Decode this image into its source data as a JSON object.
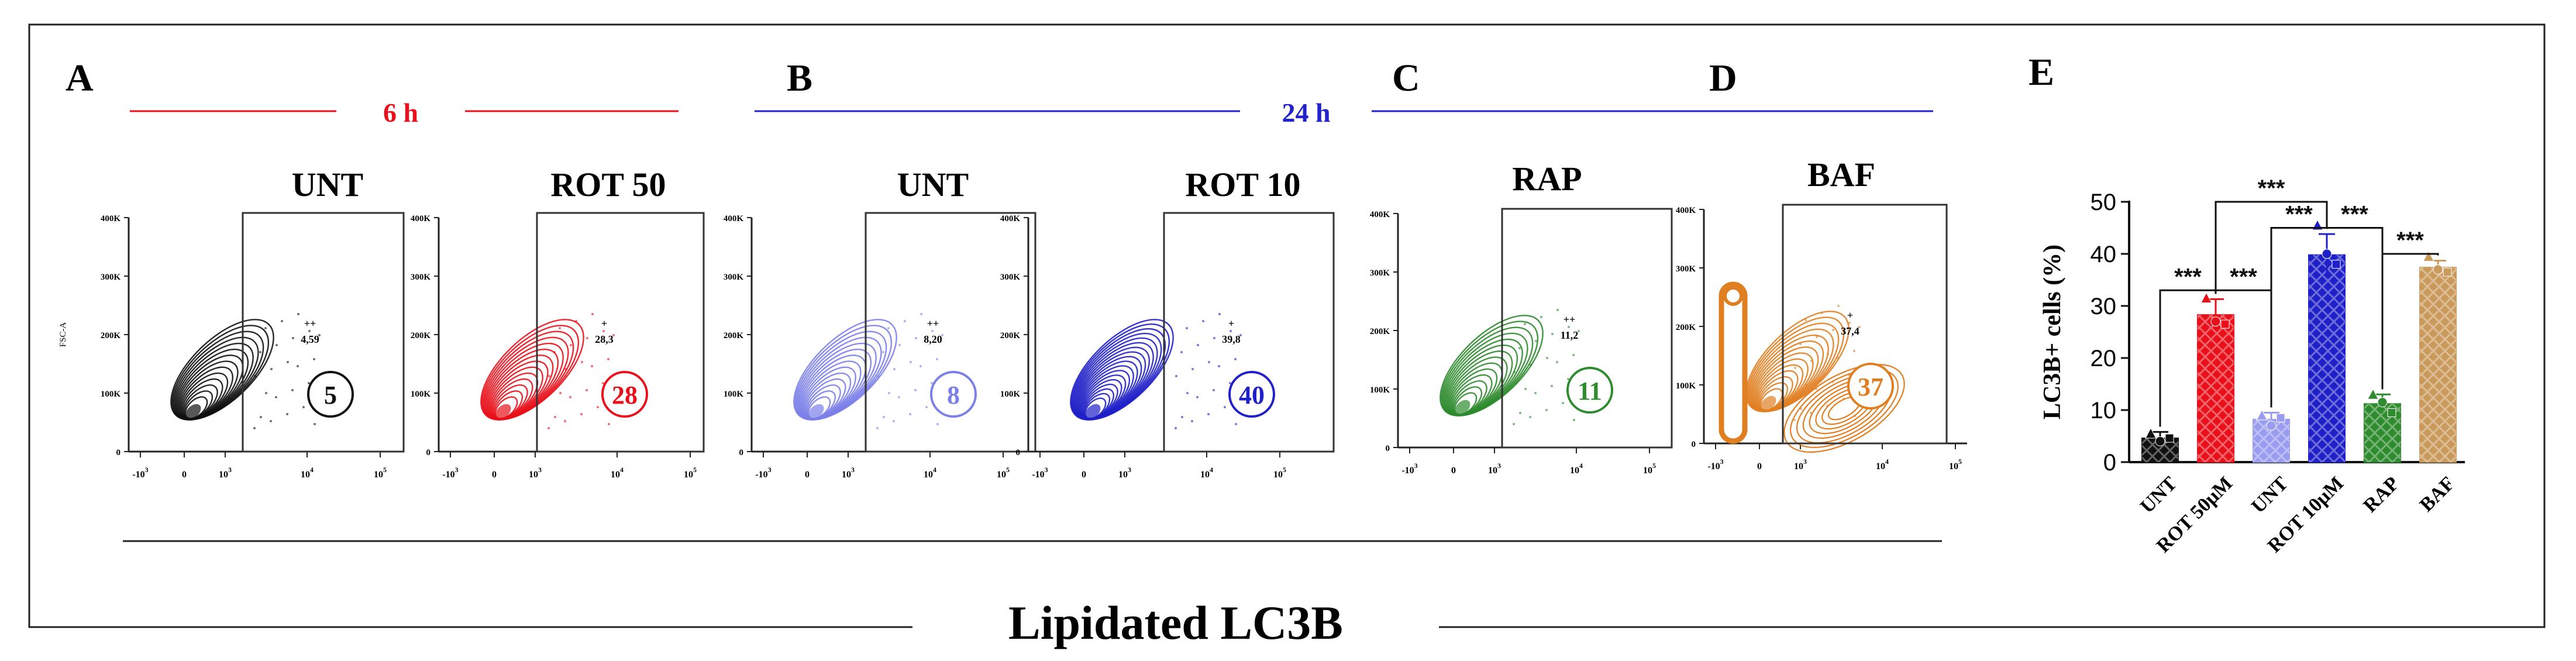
{
  "figure": {
    "x_axis_title": "Lipidated LC3B",
    "time_labels": {
      "early": "6 h",
      "late": "24 h"
    },
    "colors": {
      "early": "#e8111b",
      "late": "#2222cc"
    }
  },
  "panels": [
    {
      "letter": "A",
      "label": "UNT",
      "color": "#111111",
      "gate_value": "4,59",
      "gate_marks": "++",
      "circle_value": "5",
      "ylabel": "FSC-A"
    },
    {
      "letter": "",
      "label": "ROT 50",
      "color": "#e8111b",
      "gate_value": "28,3",
      "gate_marks": "+",
      "circle_value": "28",
      "ylabel": ""
    },
    {
      "letter": "B",
      "label": "UNT",
      "color": "#7b7fe8",
      "gate_value": "8,20",
      "gate_marks": "++",
      "circle_value": "8",
      "ylabel": ""
    },
    {
      "letter": "",
      "label": "ROT 10",
      "color": "#2020c8",
      "gate_value": "39,8",
      "gate_marks": "+",
      "circle_value": "40",
      "ylabel": ""
    },
    {
      "letter": "C",
      "label": "RAP",
      "color": "#2e8b2e",
      "gate_value": "11,2",
      "gate_marks": "++",
      "circle_value": "11",
      "ylabel": ""
    },
    {
      "letter": "D",
      "label": "BAF",
      "color": "#e07f22",
      "gate_value": "37,4",
      "gate_marks": "+",
      "circle_value": "37",
      "ylabel": ""
    }
  ],
  "flow_axis": {
    "y_ticks": [
      "400K",
      "300K",
      "200K",
      "100K",
      "0"
    ],
    "x_ticks": [
      {
        "base": "-10",
        "exp": "3"
      },
      {
        "base": "0",
        "exp": ""
      },
      {
        "base": "10",
        "exp": "3"
      },
      {
        "base": "10",
        "exp": "4"
      },
      {
        "base": "10",
        "exp": "5"
      }
    ]
  },
  "chart_data": {
    "type": "bar",
    "panel_letter": "E",
    "ylabel": "LC3B+ cells (%)",
    "ylim": [
      0,
      50
    ],
    "yticks": [
      0,
      10,
      20,
      30,
      40,
      50
    ],
    "categories": [
      "UNT",
      "ROT 50μM",
      "UNT",
      "ROT 10μM",
      "RAP",
      "BAF"
    ],
    "values": [
      4.6,
      28.3,
      8.2,
      39.8,
      11.2,
      37.4
    ],
    "errors": [
      1.2,
      3.0,
      1.3,
      4.0,
      1.8,
      1.3
    ],
    "points": [
      [
        5.5,
        4.0,
        4.6
      ],
      [
        31.5,
        27.0,
        26.5
      ],
      [
        9.0,
        7.0,
        8.5
      ],
      [
        45.5,
        40.0,
        38.0
      ],
      [
        13.0,
        11.5,
        9.5
      ],
      [
        39.5,
        37.0,
        36.5
      ]
    ],
    "colors": [
      "#111111",
      "#e8111b",
      "#9a9cf0",
      "#2020c8",
      "#2e8b2e",
      "#c99a5c"
    ],
    "significance": [
      {
        "from": 0,
        "to": 1,
        "label": "***",
        "level": 33
      },
      {
        "from": 1,
        "to": 2,
        "label": "***",
        "level": 33
      },
      {
        "from": 1,
        "to": 3,
        "label": "***",
        "level": 50
      },
      {
        "from": 2,
        "to": 3,
        "label": "***",
        "level": 45
      },
      {
        "from": 3,
        "to": 4,
        "label": "***",
        "level": 45
      },
      {
        "from": 4,
        "to": 5,
        "label": "***",
        "level": 40
      }
    ]
  }
}
